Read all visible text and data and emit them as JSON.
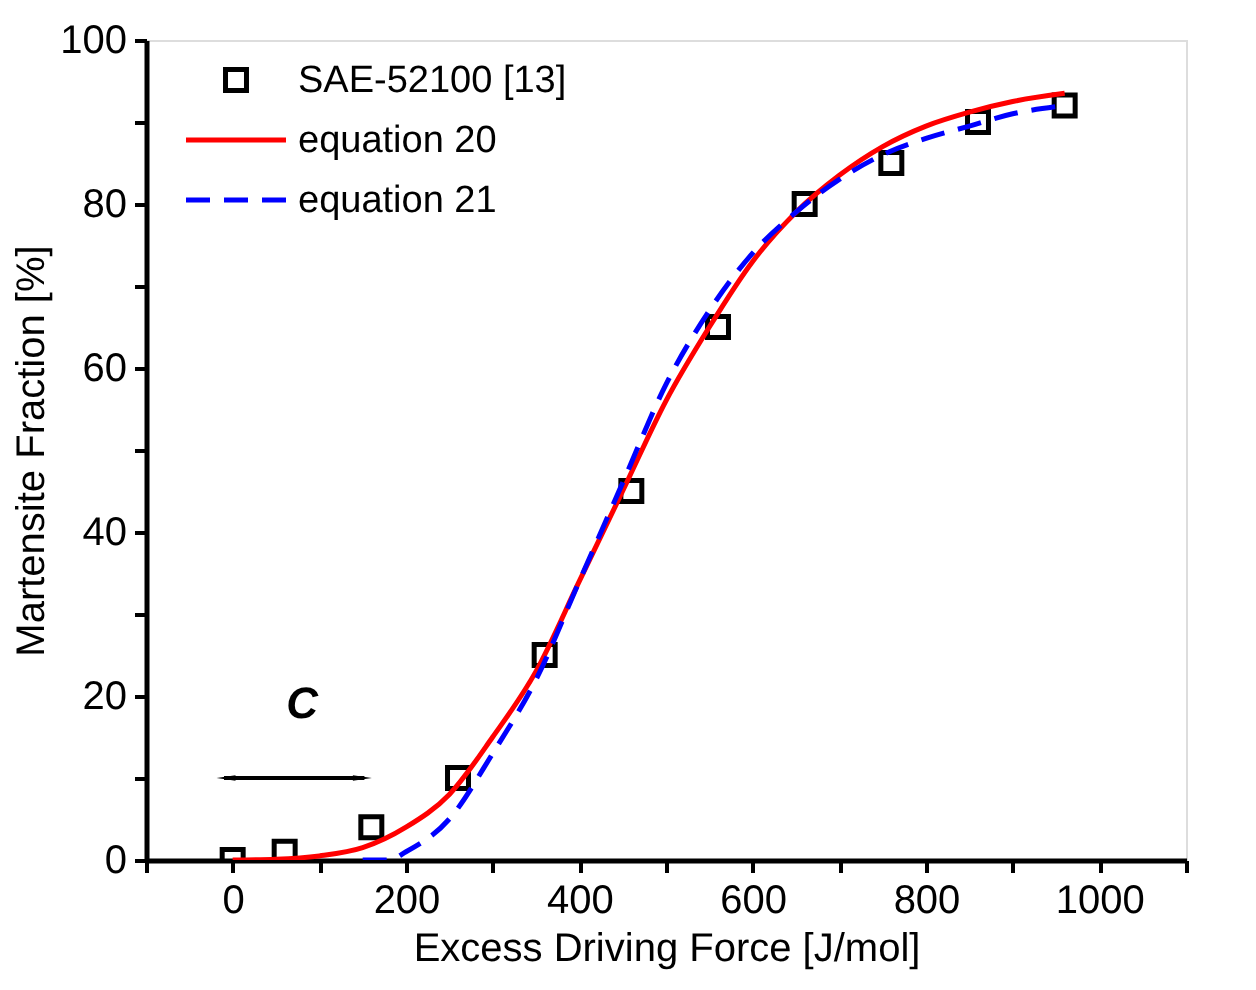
{
  "chart_data": {
    "type": "scatter",
    "xlabel": "Excess Driving Force [J/mol]",
    "ylabel": "Martensite Fraction [%]",
    "xlim": [
      -100,
      1100
    ],
    "ylim": [
      0,
      100
    ],
    "xticks": [
      {
        "value": -100,
        "label": null
      },
      0,
      {
        "value": 100,
        "label": null
      },
      200,
      {
        "value": 300,
        "label": null
      },
      400,
      {
        "value": 500,
        "label": null
      },
      600,
      {
        "value": 700,
        "label": null
      },
      800,
      {
        "value": 900,
        "label": null
      },
      {
        "value": 1000,
        "label": "1000"
      },
      {
        "value": 1100,
        "label": null
      }
    ],
    "yticks": [
      0,
      {
        "value": 10,
        "label": null
      },
      20,
      {
        "value": 30,
        "label": null
      },
      40,
      {
        "value": 50,
        "label": null
      },
      60,
      {
        "value": 70,
        "label": null
      },
      80,
      {
        "value": 90,
        "label": null
      },
      100
    ],
    "grid": false,
    "legend": "top left",
    "series": [
      {
        "name": "SAE-52100 [13]",
        "marker": "square",
        "color": "#000000",
        "x": [
          0,
          60,
          160,
          260,
          360,
          460,
          560,
          660,
          760,
          860,
          960
        ],
        "values": [
          0,
          1,
          4,
          10,
          25,
          45,
          65,
          80,
          85,
          90,
          92
        ]
      },
      {
        "name": "equation 20",
        "type": "line",
        "line_style": "solid",
        "color": "#ff0000",
        "x": [
          0,
          50,
          100,
          150,
          200,
          250,
          300,
          350,
          400,
          450,
          500,
          550,
          600,
          650,
          700,
          750,
          800,
          850,
          900,
          960
        ],
        "values": [
          0,
          0.1,
          0.5,
          1.5,
          4,
          8,
          15,
          23,
          34,
          45,
          56,
          65,
          73,
          79,
          83.5,
          87,
          89.5,
          91.2,
          92.5,
          93.5
        ]
      },
      {
        "name": "equation 21",
        "type": "line",
        "line_style": "dashed",
        "color": "#0000ff",
        "x": [
          150,
          180,
          200,
          250,
          300,
          350,
          400,
          450,
          500,
          550,
          600,
          650,
          700,
          750,
          800,
          850,
          900,
          960
        ],
        "values": [
          0,
          0,
          1,
          5,
          13,
          22,
          34,
          46,
          58,
          67,
          74,
          79,
          83,
          86,
          88,
          89.5,
          91,
          92
        ]
      }
    ],
    "annotations": [
      "C"
    ]
  }
}
